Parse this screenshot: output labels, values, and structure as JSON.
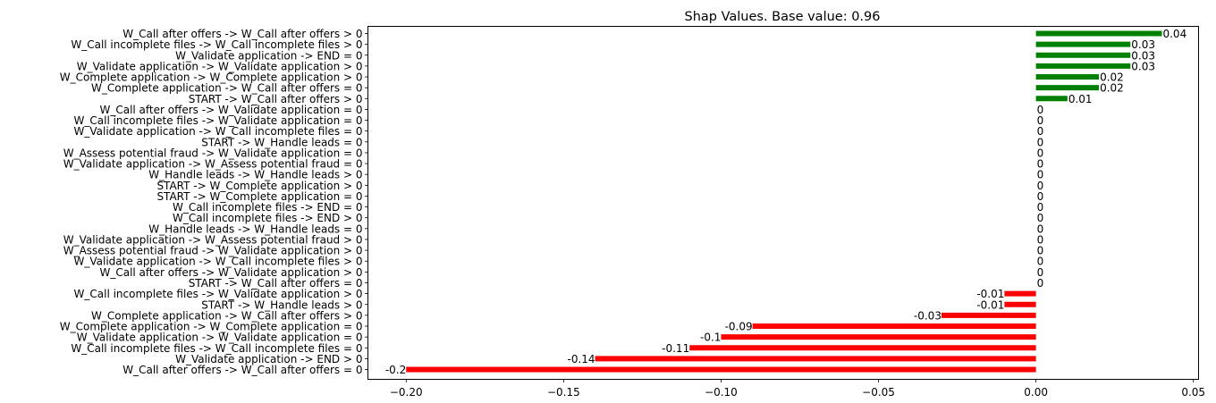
{
  "chart_data": {
    "type": "bar",
    "orientation": "horizontal",
    "title": "Shap Values. Base value: 0.96",
    "xlabel": "",
    "ylabel": "",
    "xlim": [
      -0.212,
      0.0515
    ],
    "xticks": [
      -0.2,
      -0.15,
      -0.1,
      -0.05,
      0.0,
      0.05
    ],
    "xtick_labels": [
      "−0.20",
      "−0.15",
      "−0.10",
      "−0.05",
      "0.00",
      "0.05"
    ],
    "grid": false,
    "positive_color": "#008000",
    "negative_color": "#ff0000",
    "categories": [
      "W_Call after offers -> W_Call after offers > 0",
      "W_Call incomplete files -> W_Call incomplete files > 0",
      "W_Validate application -> END = 0",
      "W_Validate application -> W_Validate application > 0",
      "W_Complete application -> W_Complete application > 0",
      "W_Complete application -> W_Call after offers = 0",
      "START -> W_Call after offers > 0",
      "W_Call after offers -> W_Validate application = 0",
      "W_Call incomplete files -> W_Validate application = 0",
      "W_Validate application -> W_Call incomplete files = 0",
      "START -> W_Handle leads = 0",
      "W_Assess potential fraud -> W_Validate application = 0",
      "W_Validate application -> W_Assess potential fraud = 0",
      "W_Handle leads -> W_Handle leads > 0",
      "START -> W_Complete application > 0",
      "START -> W_Complete application = 0",
      "W_Call incomplete files -> END = 0",
      "W_Call incomplete files -> END > 0",
      "W_Handle leads -> W_Handle leads = 0",
      "W_Validate application -> W_Assess potential fraud > 0",
      "W_Assess potential fraud -> W_Validate application > 0",
      "W_Validate application -> W_Call incomplete files > 0",
      "W_Call after offers -> W_Validate application > 0",
      "START -> W_Call after offers = 0",
      "W_Call incomplete files -> W_Validate application > 0",
      "START -> W_Handle leads > 0",
      "W_Complete application -> W_Call after offers > 0",
      "W_Complete application -> W_Complete application = 0",
      "W_Validate application -> W_Validate application = 0",
      "W_Call incomplete files -> W_Call incomplete files = 0",
      "W_Validate application -> END > 0",
      "W_Call after offers -> W_Call after offers = 0"
    ],
    "values": [
      0.04,
      0.03,
      0.03,
      0.03,
      0.02,
      0.02,
      0.01,
      0,
      0,
      0,
      0,
      0,
      0,
      0,
      0,
      0,
      0,
      0,
      0,
      0,
      0,
      0,
      0,
      0,
      -0.01,
      -0.01,
      -0.03,
      -0.09,
      -0.1,
      -0.11,
      -0.14,
      -0.2
    ],
    "data_labels": [
      "0.04",
      "0.03",
      "0.03",
      "0.03",
      "0.02",
      "0.02",
      "0.01",
      "0",
      "0",
      "0",
      "0",
      "0",
      "0",
      "0",
      "0",
      "0",
      "0",
      "0",
      "0",
      "0",
      "0",
      "0",
      "0",
      "0",
      "-0.01",
      "-0.01",
      "-0.03",
      "-0.09",
      "-0.1",
      "-0.11",
      "-0.14",
      "-0.2"
    ]
  }
}
